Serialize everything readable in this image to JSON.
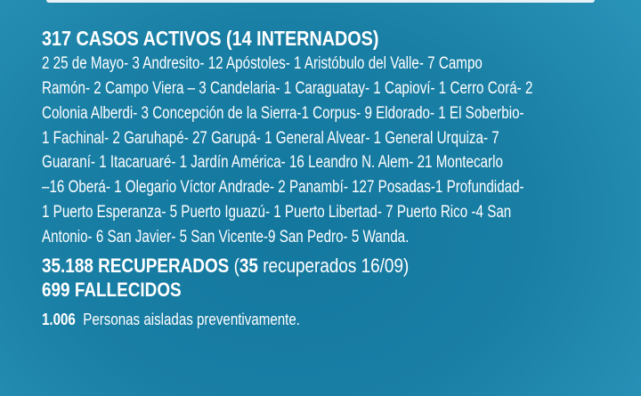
{
  "active_heading": "317 CASOS ACTIVOS (14 INTERNADOS)",
  "locality_lines": [
    "2 25 de Mayo-  3 Andresito- 12 Apóstoles- 1 Aristóbulo del Valle- 7  Campo",
    "Ramón- 2 Campo Viera – 3 Candelaria- 1 Caraguatay- 1 Capioví- 1 Cerro Corá- 2",
    "Colonia Alberdi- 3 Concepción de la Sierra-1 Corpus- 9 Eldorado- 1 El Soberbio-",
    "1 Fachinal- 2 Garuhapé- 27 Garupá- 1 General Alvear- 1 General Urquiza- 7",
    "Guaraní- 1 Itacaruaré- 1 Jardín América- 16 Leandro N. Alem- 21 Montecarlo",
    "–16 Oberá- 1 Olegario Víctor Andrade- 2 Panambí- 127 Posadas-1 Profundidad-",
    "1 Puerto Esperanza- 5 Puerto Iguazú- 1 Puerto Libertad- 7 Puerto Rico -4 San",
    "Antonio-  6 San Javier- 5 San Vicente-9 San Pedro- 5 Wanda."
  ],
  "recovered": {
    "bold": "35.188 RECUPERADOS",
    "open": " (",
    "daily_number": "35",
    "daily_text": " recuperados 16/09)"
  },
  "deaths": "699 FALLECIDOS",
  "isolated": {
    "number": "1.006",
    "text": "  Personas aisladas preventivamente."
  },
  "colors": {
    "background": "#1a7fa5",
    "text": "#ffffff"
  }
}
